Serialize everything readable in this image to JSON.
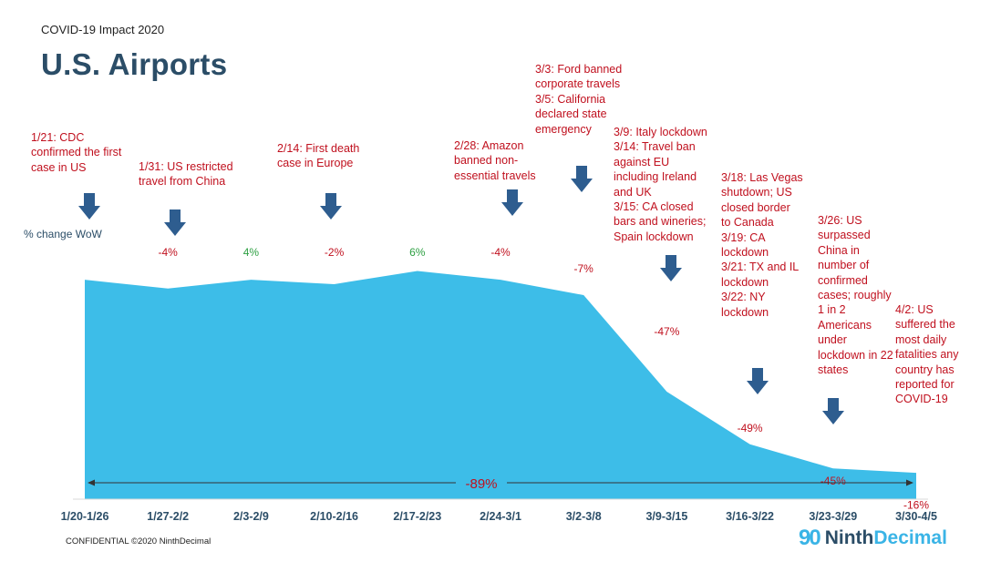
{
  "header": {
    "kicker": "COVID-19 Impact 2020",
    "title": "U.S. Airports"
  },
  "wow_label": "% change WoW",
  "chart_data": {
    "type": "area",
    "categories": [
      "1/20-1/26",
      "1/27-2/2",
      "2/3-2/9",
      "2/10-2/16",
      "2/17-2/23",
      "2/24-3/1",
      "3/2-3/8",
      "3/9-3/15",
      "3/16-3/22",
      "3/23-3/29",
      "3/30-4/5"
    ],
    "values": [
      100,
      96,
      100,
      98,
      104,
      100,
      93,
      49,
      25,
      14,
      12
    ],
    "wow_labels": [
      "",
      "-4%",
      "4%",
      "-2%",
      "6%",
      "-4%",
      "-7%",
      "-47%",
      "-49%",
      "-45%",
      "-16%"
    ],
    "wow_values": [
      null,
      -4,
      4,
      -2,
      6,
      -4,
      -7,
      -47,
      -49,
      -45,
      -16
    ],
    "ylim": [
      0,
      115
    ],
    "total_change": "-89%",
    "area_color": "#3dbde8",
    "negative_color": "#c0101e",
    "positive_color": "#2ea043",
    "axis_label_color": "#2b4d67",
    "arrow_color": "#2e5d8f",
    "grid": false
  },
  "annotations": [
    {
      "text": "1/21: CDC\nconfirmed the first\ncase in US"
    },
    {
      "text": "1/31: US restricted\ntravel from China"
    },
    {
      "text": "2/14: First death\ncase in Europe"
    },
    {
      "text": "2/28: Amazon\nbanned non-\nessential travels"
    },
    {
      "text": "3/3: Ford banned\ncorporate travels\n3/5: California\ndeclared state\nemergency"
    },
    {
      "text": "3/9: Italy lockdown\n3/14: Travel ban\nagainst EU\nincluding Ireland\nand UK\n3/15: CA closed\nbars and wineries;\nSpain lockdown"
    },
    {
      "text": "3/18: Las Vegas\nshutdown; US\nclosed border\nto Canada\n3/19: CA\nlockdown\n3/21: TX and IL\nlockdown\n3/22: NY\nlockdown"
    },
    {
      "text": "3/26: US\nsurpassed\nChina in\nnumber of\nconfirmed\ncases; roughly\n1 in 2\nAmericans\nunder\nlockdown in 22\nstates"
    },
    {
      "text": "4/2: US\nsuffered the\nmost daily\nfatalities any\ncountry has\nreported for\nCOVID-19"
    }
  ],
  "event_arrows": [
    "down-arrow-icon",
    "down-arrow-icon",
    "down-arrow-icon",
    "down-arrow-icon",
    "down-arrow-icon",
    "down-arrow-icon",
    "down-arrow-icon",
    "down-arrow-icon"
  ],
  "footer": {
    "confidential": "CONFIDENTIAL ©2020 NinthDecimal"
  },
  "logo": {
    "icon": "ninthdecimal-logo-icon",
    "mark": "90",
    "word1": "Ninth",
    "word2": "Decimal"
  }
}
